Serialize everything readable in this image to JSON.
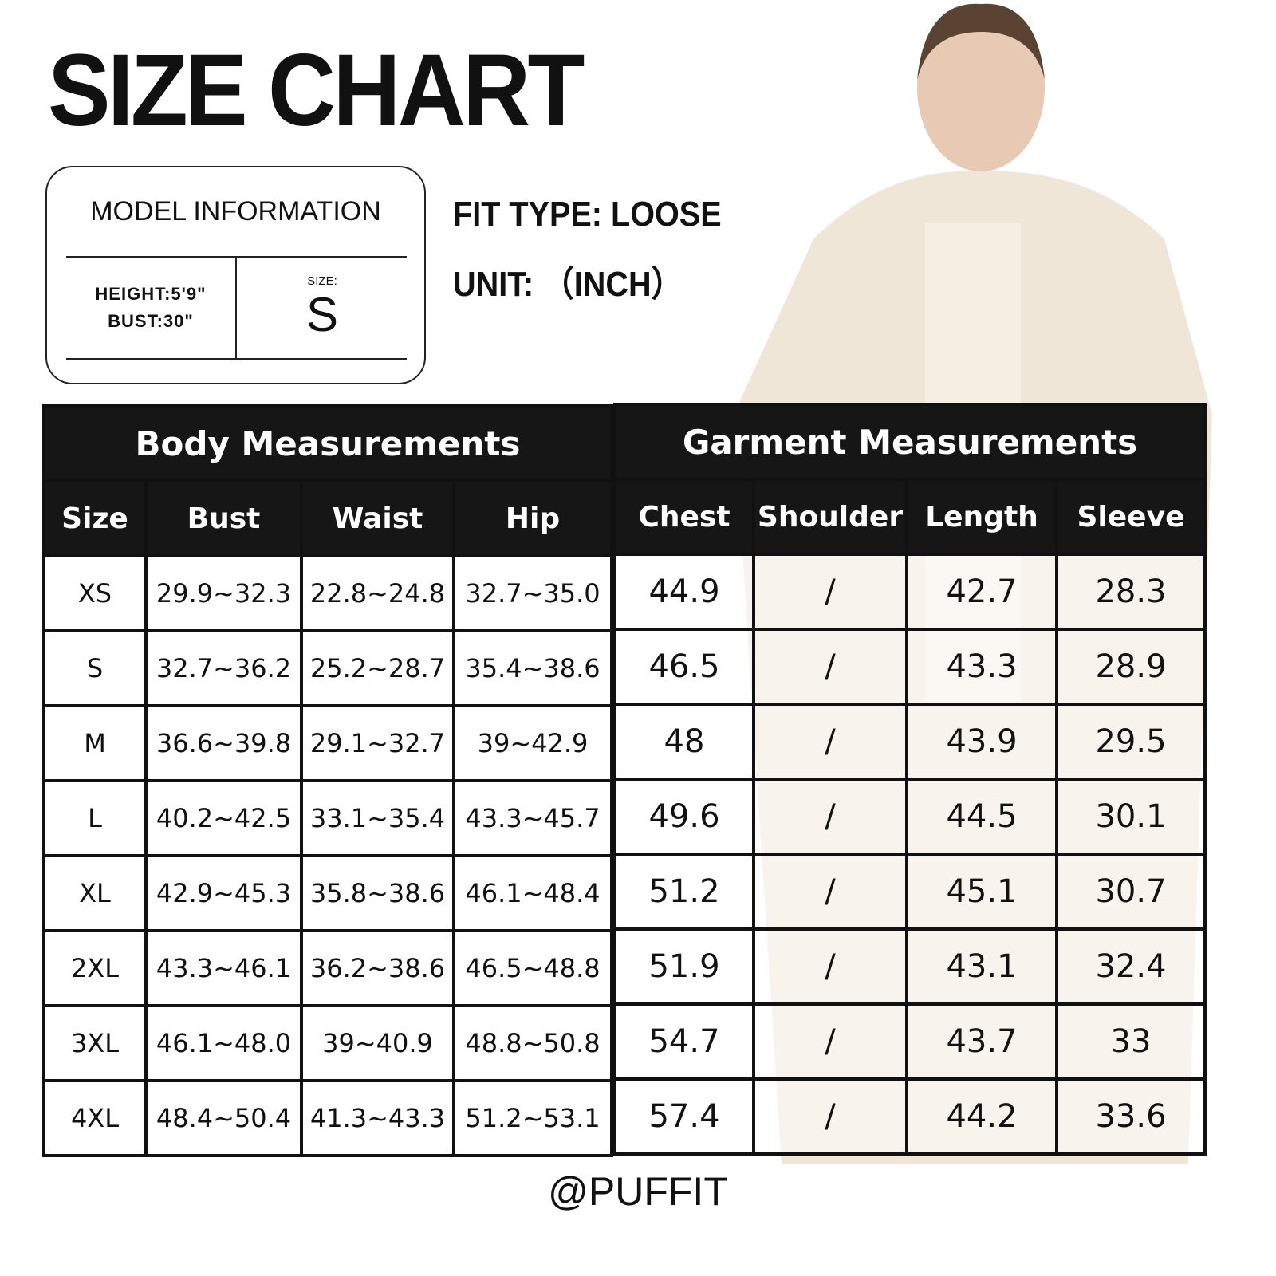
{
  "title": "SIZE CHART",
  "model_info": {
    "heading": "MODEL INFORMATION",
    "height": "HEIGHT:5'9\"",
    "bust": "BUST:30\"",
    "size_label": "SIZE:",
    "size_value": "S"
  },
  "fit_type": "FIT TYPE: LOOSE",
  "unit": "UNIT: （INCH）",
  "body": {
    "heading": "Body Measurements",
    "columns": [
      "Size",
      "Bust",
      "Waist",
      "Hip"
    ],
    "rows": [
      [
        "XS",
        "29.9~32.3",
        "22.8~24.8",
        "32.7~35.0"
      ],
      [
        "S",
        "32.7~36.2",
        "25.2~28.7",
        "35.4~38.6"
      ],
      [
        "M",
        "36.6~39.8",
        "29.1~32.7",
        "39~42.9"
      ],
      [
        "L",
        "40.2~42.5",
        "33.1~35.4",
        "43.3~45.7"
      ],
      [
        "XL",
        "42.9~45.3",
        "35.8~38.6",
        "46.1~48.4"
      ],
      [
        "2XL",
        "43.3~46.1",
        "36.2~38.6",
        "46.5~48.8"
      ],
      [
        "3XL",
        "46.1~48.0",
        "39~40.9",
        "48.8~50.8"
      ],
      [
        "4XL",
        "48.4~50.4",
        "41.3~43.3",
        "51.2~53.1"
      ]
    ]
  },
  "garment": {
    "heading": "Garment Measurements",
    "columns": [
      "Chest",
      "Shoulder",
      "Length",
      "Sleeve"
    ],
    "rows": [
      [
        "44.9",
        "/",
        "42.7",
        "28.3"
      ],
      [
        "46.5",
        "/",
        "43.3",
        "28.9"
      ],
      [
        "48",
        "/",
        "43.9",
        "29.5"
      ],
      [
        "49.6",
        "/",
        "44.5",
        "30.1"
      ],
      [
        "51.2",
        "/",
        "45.1",
        "30.7"
      ],
      [
        "51.9",
        "/",
        "43.1",
        "32.4"
      ],
      [
        "54.7",
        "/",
        "43.7",
        "33"
      ],
      [
        "57.4",
        "/",
        "44.2",
        "33.6"
      ]
    ]
  },
  "footer": "@PUFFIT",
  "colors": {
    "header_bg": "#161616",
    "coat": "#efe6d8"
  }
}
